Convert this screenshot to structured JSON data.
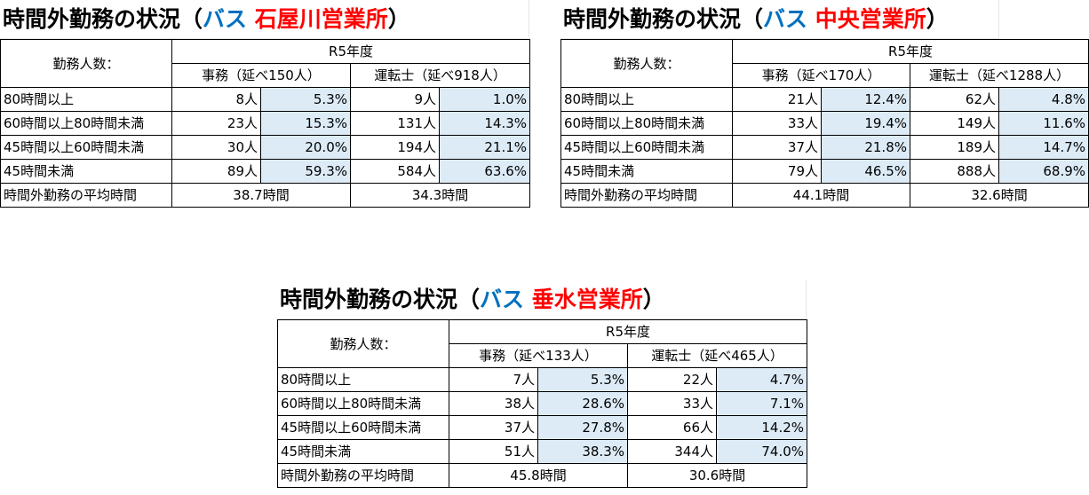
{
  "panels": [
    {
      "title_prefix": "時間外勤務の状況（",
      "title_bus": "バス ",
      "title_office": "石屋川営業所",
      "title_suffix": "）",
      "header_label": "勤務人数：",
      "year": "R5年度",
      "col1": "事務（延べ150人）",
      "col2": "運転士（延べ918人）",
      "rows": [
        {
          "label": "80時間以上",
          "c1": "8人",
          "p1": "5.3%",
          "c2": "9人",
          "p2": "1.0%"
        },
        {
          "label": "60時間以上80時間未満",
          "c1": "23人",
          "p1": "15.3%",
          "c2": "131人",
          "p2": "14.3%"
        },
        {
          "label": "45時間以上60時間未満",
          "c1": "30人",
          "p1": "20.0%",
          "c2": "194人",
          "p2": "21.1%"
        },
        {
          "label": "45時間未満",
          "c1": "89人",
          "p1": "59.3%",
          "c2": "584人",
          "p2": "63.6%"
        }
      ],
      "avg_label": "時間外勤務の平均時間",
      "avg1": "38.7時間",
      "avg2": "34.3時間"
    },
    {
      "title_prefix": "時間外勤務の状況（",
      "title_bus": "バス ",
      "title_office": "中央営業所",
      "title_suffix": "）",
      "header_label": "勤務人数：",
      "year": "R5年度",
      "col1": "事務（延べ170人）",
      "col2": "運転士（延べ1288人）",
      "rows": [
        {
          "label": "80時間以上",
          "c1": "21人",
          "p1": "12.4%",
          "c2": "62人",
          "p2": "4.8%"
        },
        {
          "label": "60時間以上80時間未満",
          "c1": "33人",
          "p1": "19.4%",
          "c2": "149人",
          "p2": "11.6%"
        },
        {
          "label": "45時間以上60時間未満",
          "c1": "37人",
          "p1": "21.8%",
          "c2": "189人",
          "p2": "14.7%"
        },
        {
          "label": "45時間未満",
          "c1": "79人",
          "p1": "46.5%",
          "c2": "888人",
          "p2": "68.9%"
        }
      ],
      "avg_label": "時間外勤務の平均時間",
      "avg1": "44.1時間",
      "avg2": "32.6時間"
    },
    {
      "title_prefix": "時間外勤務の状況（",
      "title_bus": "バス ",
      "title_office": "垂水営業所",
      "title_suffix": "）",
      "header_label": "勤務人数：",
      "year": "R5年度",
      "col1": "事務（延べ133人）",
      "col2": "運転士（延べ465人）",
      "rows": [
        {
          "label": "80時間以上",
          "c1": "7人",
          "p1": "5.3%",
          "c2": "22人",
          "p2": "4.7%"
        },
        {
          "label": "60時間以上80時間未満",
          "c1": "38人",
          "p1": "28.6%",
          "c2": "33人",
          "p2": "7.1%"
        },
        {
          "label": "45時間以上60時間未満",
          "c1": "37人",
          "p1": "27.8%",
          "c2": "66人",
          "p2": "14.2%"
        },
        {
          "label": "45時間未満",
          "c1": "51人",
          "p1": "38.3%",
          "c2": "344人",
          "p2": "74.0%"
        }
      ],
      "avg_label": "時間外勤務の平均時間",
      "avg1": "45.8時間",
      "avg2": "30.6時間"
    }
  ]
}
